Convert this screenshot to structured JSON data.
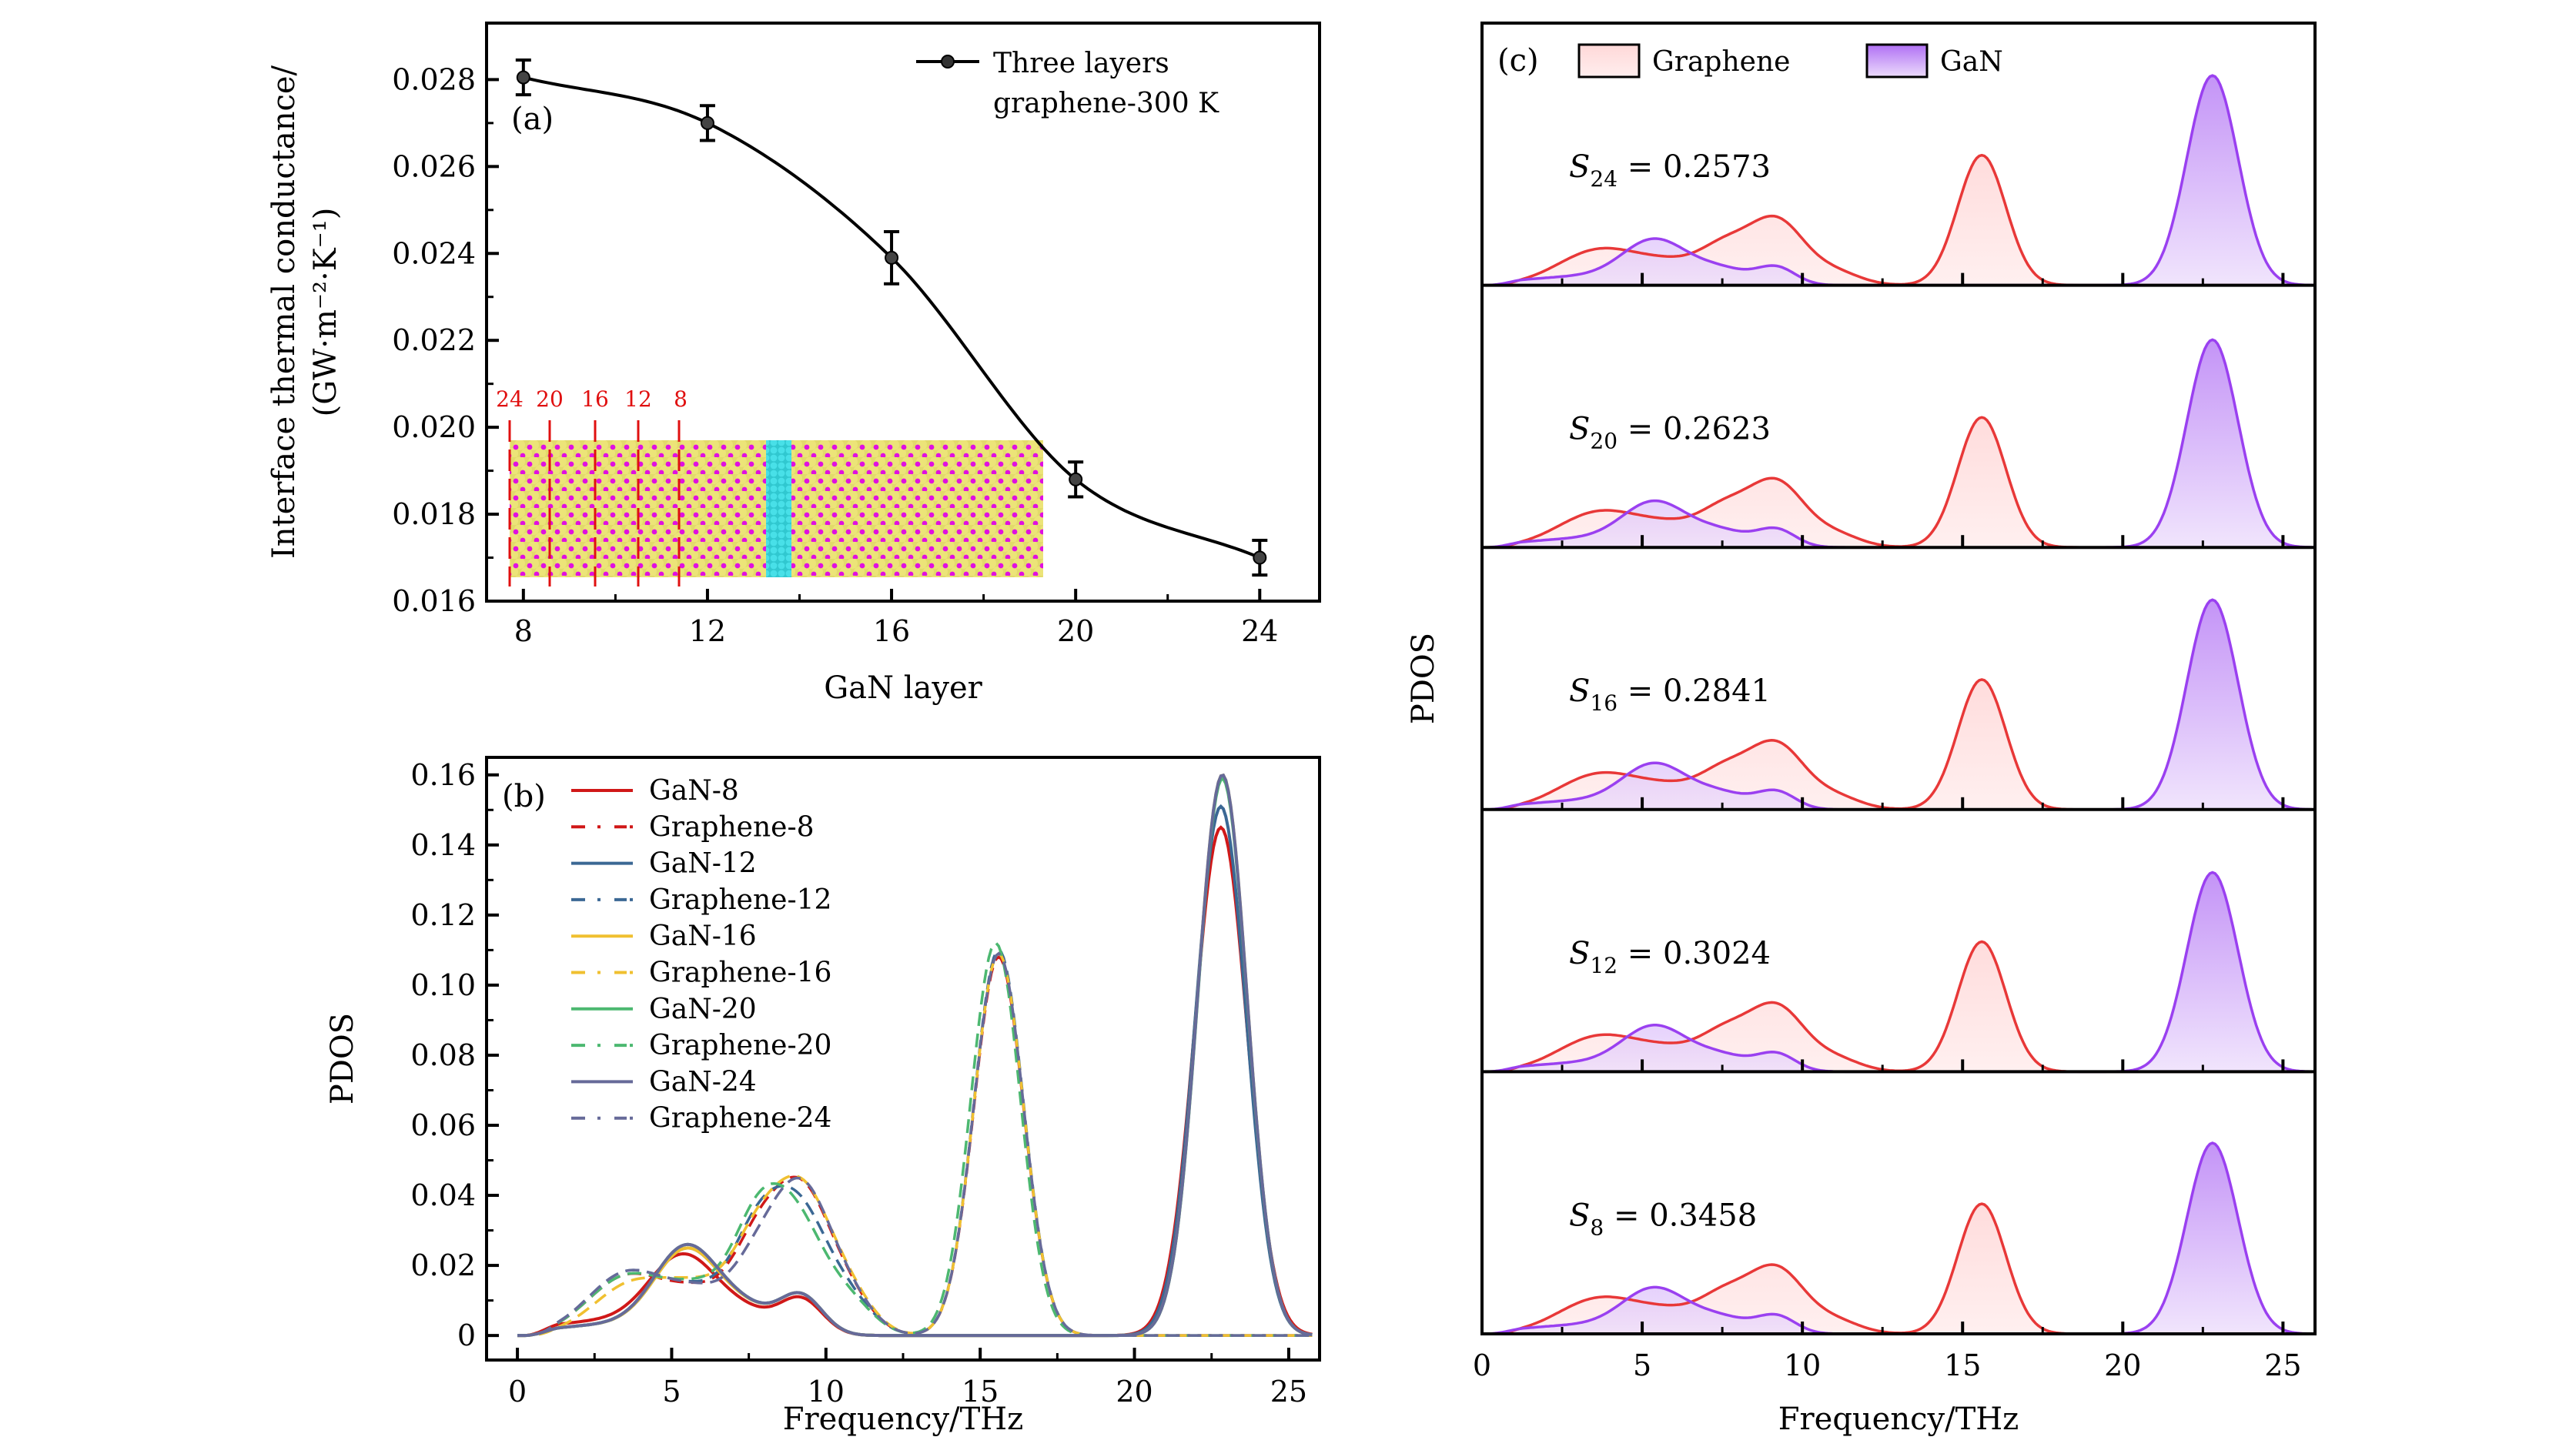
{
  "chart_data": [
    {
      "id": "a",
      "type": "line",
      "panel_label": "(a)",
      "xlabel": "GaN layer",
      "ylabel_line1": "Interface thermal conductance/",
      "ylabel_line2": "(GW·m⁻²·K⁻¹)",
      "xlim": [
        7.2,
        25.3
      ],
      "ylim": [
        0.016,
        0.0293
      ],
      "xticks": [
        8,
        12,
        16,
        20,
        24
      ],
      "xtick_labels": [
        "8",
        "12",
        "16",
        "20",
        "24"
      ],
      "yticks": [
        0.016,
        0.018,
        0.02,
        0.022,
        0.024,
        0.026,
        0.028
      ],
      "ytick_labels": [
        "0.016",
        "0.018",
        "0.020",
        "0.022",
        "0.024",
        "0.026",
        "0.028"
      ],
      "legend": {
        "label_line1": "Three layers",
        "label_line2": "graphene-300 K",
        "placement": "top-right"
      },
      "series": [
        {
          "name": "Three layers graphene-300 K",
          "color": "#000000",
          "x": [
            8,
            12,
            16,
            20,
            24
          ],
          "y": [
            0.02805,
            0.027,
            0.0239,
            0.0188,
            0.017
          ],
          "yerr": [
            0.0004,
            0.0004,
            0.0006,
            0.0004,
            0.0004
          ]
        }
      ],
      "inset": {
        "description": "atomic structure of GaN/graphene/GaN interface",
        "marker_labels": [
          "24",
          "20",
          "16",
          "12",
          "8"
        ],
        "colors": {
          "ga": "#e8e070",
          "n": "#e010e0",
          "graphene": "#40d8e0",
          "marker": "#e01010"
        }
      }
    },
    {
      "id": "b",
      "type": "line",
      "panel_label": "(b)",
      "xlabel": "Frequency/THz",
      "ylabel": "PDOS",
      "xlim": [
        -1,
        26
      ],
      "ylim": [
        -0.007,
        0.165
      ],
      "xticks": [
        0,
        5,
        10,
        15,
        20,
        25
      ],
      "xtick_labels": [
        "0",
        "5",
        "10",
        "15",
        "20",
        "25"
      ],
      "yticks": [
        0,
        0.02,
        0.04,
        0.06,
        0.08,
        0.1,
        0.12,
        0.14,
        0.16
      ],
      "ytick_labels": [
        "0",
        "0.02",
        "0.04",
        "0.06",
        "0.08",
        "0.10",
        "0.12",
        "0.14",
        "0.16"
      ],
      "legend_placement": "top-left",
      "series": [
        {
          "name": "GaN-8",
          "color": "#d01818",
          "dash": false,
          "peaks": [
            [
              2.8,
              2.2,
              0.004
            ],
            [
              5.4,
              1.1,
              0.021
            ],
            [
              7.5,
              0.9,
              0.005
            ],
            [
              9.2,
              0.7,
              0.01
            ],
            [
              22.8,
              0.85,
              0.145
            ]
          ]
        },
        {
          "name": "Graphene-8",
          "color": "#d01818",
          "dash": true,
          "peaks": [
            [
              3.6,
              1.3,
              0.017
            ],
            [
              6.0,
              1.0,
              0.01
            ],
            [
              7.7,
              0.8,
              0.02
            ],
            [
              9.2,
              0.95,
              0.04
            ],
            [
              10.8,
              0.8,
              0.008
            ],
            [
              15.6,
              0.8,
              0.108
            ]
          ]
        },
        {
          "name": "GaN-12",
          "color": "#3b6894",
          "dash": false,
          "peaks": [
            [
              3.0,
              2.1,
              0.003
            ],
            [
              5.5,
              1.05,
              0.023
            ],
            [
              7.5,
              0.9,
              0.006
            ],
            [
              9.2,
              0.7,
              0.011
            ],
            [
              22.8,
              0.82,
              0.151
            ]
          ]
        },
        {
          "name": "Graphene-12",
          "color": "#3b6894",
          "dash": true,
          "peaks": [
            [
              3.6,
              1.3,
              0.018
            ],
            [
              6.0,
              1.0,
              0.01
            ],
            [
              7.7,
              0.8,
              0.022
            ],
            [
              9.1,
              0.95,
              0.035
            ],
            [
              10.8,
              0.8,
              0.008
            ],
            [
              15.6,
              0.8,
              0.11
            ]
          ]
        },
        {
          "name": "GaN-16",
          "color": "#f0c030",
          "dash": false,
          "peaks": [
            [
              3.0,
              2.1,
              0.003
            ],
            [
              5.5,
              1.05,
              0.023
            ],
            [
              7.5,
              0.9,
              0.006
            ],
            [
              9.2,
              0.7,
              0.011
            ],
            [
              22.85,
              0.8,
              0.16
            ]
          ]
        },
        {
          "name": "Graphene-16",
          "color": "#f0c030",
          "dash": true,
          "peaks": [
            [
              3.8,
              1.3,
              0.015
            ],
            [
              6.0,
              1.0,
              0.011
            ],
            [
              7.7,
              0.8,
              0.021
            ],
            [
              9.2,
              0.95,
              0.04
            ],
            [
              10.8,
              0.8,
              0.009
            ],
            [
              15.6,
              0.8,
              0.109
            ]
          ]
        },
        {
          "name": "GaN-20",
          "color": "#4cb870",
          "dash": false,
          "peaks": [
            [
              3.0,
              2.1,
              0.003
            ],
            [
              5.5,
              1.05,
              0.024
            ],
            [
              7.5,
              0.9,
              0.006
            ],
            [
              9.2,
              0.7,
              0.011
            ],
            [
              22.85,
              0.8,
              0.159
            ]
          ]
        },
        {
          "name": "Graphene-20",
          "color": "#4cb870",
          "dash": true,
          "peaks": [
            [
              3.6,
              1.3,
              0.017
            ],
            [
              6.0,
              1.0,
              0.011
            ],
            [
              7.7,
              0.8,
              0.024
            ],
            [
              9.0,
              0.95,
              0.032
            ],
            [
              10.8,
              0.8,
              0.008
            ],
            [
              15.5,
              0.8,
              0.112
            ]
          ]
        },
        {
          "name": "GaN-24",
          "color": "#666a99",
          "dash": false,
          "peaks": [
            [
              3.0,
              2.1,
              0.003
            ],
            [
              5.5,
              1.05,
              0.024
            ],
            [
              7.5,
              0.9,
              0.006
            ],
            [
              9.2,
              0.7,
              0.011
            ],
            [
              22.85,
              0.8,
              0.16
            ]
          ]
        },
        {
          "name": "Graphene-24",
          "color": "#666a99",
          "dash": true,
          "peaks": [
            [
              3.6,
              1.3,
              0.018
            ],
            [
              6.0,
              1.0,
              0.01
            ],
            [
              7.7,
              0.8,
              0.015
            ],
            [
              9.2,
              0.95,
              0.041
            ],
            [
              10.8,
              0.8,
              0.008
            ],
            [
              15.6,
              0.8,
              0.109
            ]
          ]
        }
      ],
      "peak_format": "each peak = [center THz, width THz, height PDOS], curve = sum of gaussians"
    },
    {
      "id": "c",
      "type": "area",
      "panel_label": "(c)",
      "xlabel": "Frequency/THz",
      "ylabel": "PDOS",
      "xlim": [
        0,
        26
      ],
      "xticks": [
        0,
        5,
        10,
        15,
        20,
        25
      ],
      "xtick_labels": [
        "0",
        "5",
        "10",
        "15",
        "20",
        "25"
      ],
      "legend": [
        {
          "name": "Graphene",
          "line": "#e83838",
          "fill_top": "#ffd8d8",
          "fill_bottom": "#ffecec"
        },
        {
          "name": "GaN",
          "line": "#9a40f0",
          "fill_top": "#b878f8",
          "fill_bottom": "#ecdcfc"
        }
      ],
      "legend_placement": "top",
      "subplots": [
        {
          "layer": "24",
          "label_sub": "24",
          "label_value": "0.2573",
          "overlap": 0.2573,
          "gan_peak_scale": 1.0
        },
        {
          "layer": "20",
          "label_sub": "20",
          "label_value": "0.2623",
          "overlap": 0.2623,
          "gan_peak_scale": 0.99
        },
        {
          "layer": "16",
          "label_sub": "16",
          "label_value": "0.2841",
          "overlap": 0.2841,
          "gan_peak_scale": 1.0
        },
        {
          "layer": "12",
          "label_sub": "12",
          "label_value": "0.3024",
          "overlap": 0.3024,
          "gan_peak_scale": 0.95
        },
        {
          "layer": "8",
          "label_sub": "8",
          "label_value": "0.3458",
          "overlap": 0.3458,
          "gan_peak_scale": 0.91
        }
      ],
      "graphene_peaks": [
        [
          3.7,
          1.3,
          0.17
        ],
        [
          6.0,
          1.0,
          0.08
        ],
        [
          7.6,
          0.8,
          0.16
        ],
        [
          9.2,
          0.85,
          0.3
        ],
        [
          11.0,
          0.8,
          0.06
        ],
        [
          15.6,
          0.75,
          0.62
        ]
      ],
      "gan_peaks": [
        [
          3.0,
          1.9,
          0.04
        ],
        [
          5.4,
          1.0,
          0.2
        ],
        [
          7.5,
          0.9,
          0.07
        ],
        [
          9.2,
          0.6,
          0.08
        ],
        [
          22.8,
          0.8,
          1.0
        ]
      ],
      "peak_format": "each peak = [center THz, width THz, relative height], GaN main peak normalized to 1.0"
    }
  ]
}
